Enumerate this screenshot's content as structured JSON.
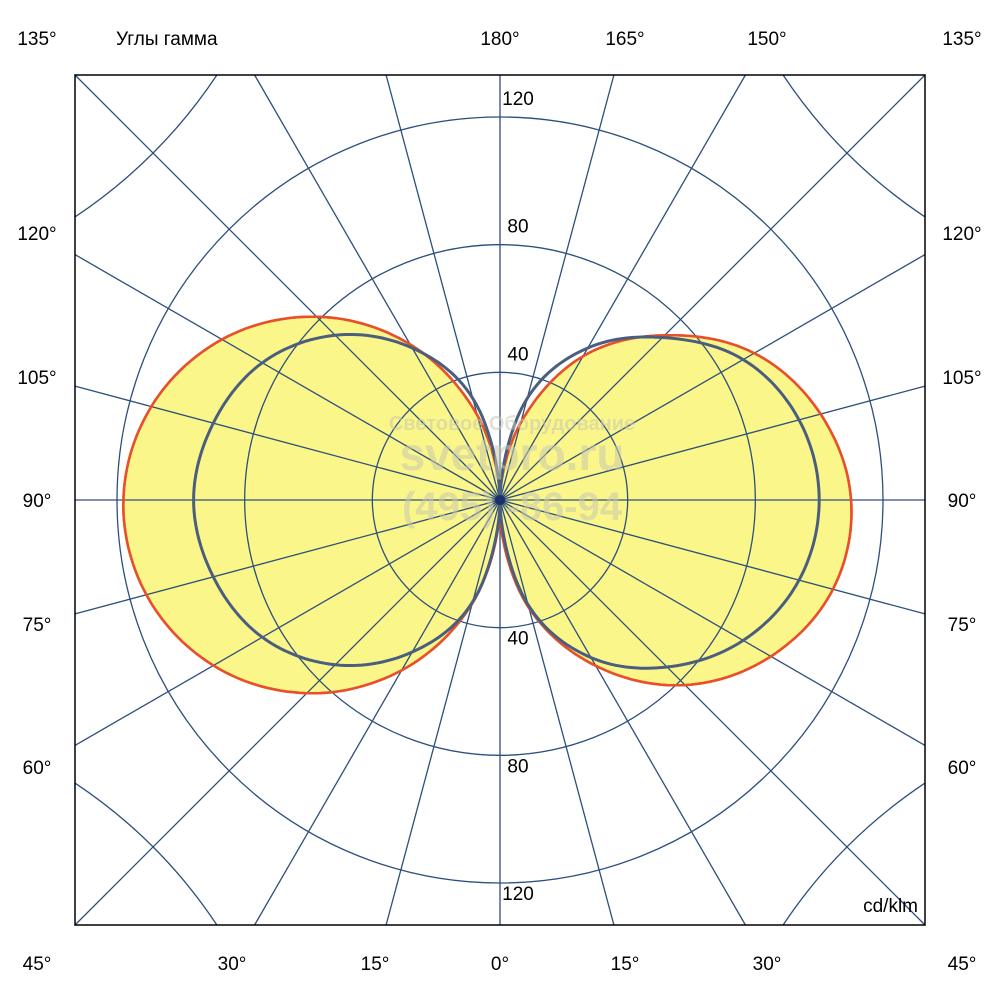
{
  "chart_data": {
    "type": "polar",
    "title": "Углы гамма",
    "unit_label": "cd/klm",
    "radial_ticks": [
      40,
      80,
      120
    ],
    "radial_max": 160,
    "angle_step_deg": 15,
    "angle_labels": {
      "top": [
        "180°",
        "165°",
        "150°"
      ],
      "top_corners": [
        "135°",
        "135°"
      ],
      "sides": [
        "120°",
        "105°",
        "90°",
        "75°",
        "60°"
      ],
      "bottom": [
        "45°",
        "30°",
        "15°",
        "0°",
        "15°",
        "30°",
        "45°"
      ]
    },
    "gamma": [
      0,
      15,
      30,
      45,
      60,
      75,
      90,
      105,
      120,
      135,
      150,
      165,
      180
    ],
    "series": [
      {
        "name": "yellow-left",
        "side": "left",
        "fill": "#fbf68a",
        "stroke": "#e8502a",
        "values": [
          3,
          33.5,
          61.6,
          85.6,
          103.7,
          114.7,
          118,
          113.1,
          100.6,
          81.2,
          56.3,
          27.5,
          0
        ]
      },
      {
        "name": "yellow-right",
        "side": "right",
        "fill": "#fbf68a",
        "stroke": "#e8502a",
        "values": [
          6,
          35,
          60,
          82,
          98,
          108,
          110,
          104,
          92,
          73,
          52,
          25,
          0
        ]
      },
      {
        "name": "blue-left",
        "side": "left",
        "fill": "none",
        "stroke": "#4a5e7e",
        "values": [
          0,
          33,
          55,
          73,
          86,
          93,
          96,
          93,
          86,
          73,
          55,
          33,
          0
        ]
      },
      {
        "name": "blue-right",
        "side": "right",
        "fill": "none",
        "stroke": "#4a5e7e",
        "values": [
          0,
          34,
          57,
          74,
          88,
          97,
          100,
          97,
          88,
          72,
          55,
          33,
          0
        ]
      }
    ],
    "colors": {
      "grid": "#2d4f7c",
      "frame": "#000000"
    }
  },
  "watermark": {
    "line1": "Световое Оборудование",
    "line2": "svetpro.ru",
    "line3": "(495)   -86-94"
  }
}
